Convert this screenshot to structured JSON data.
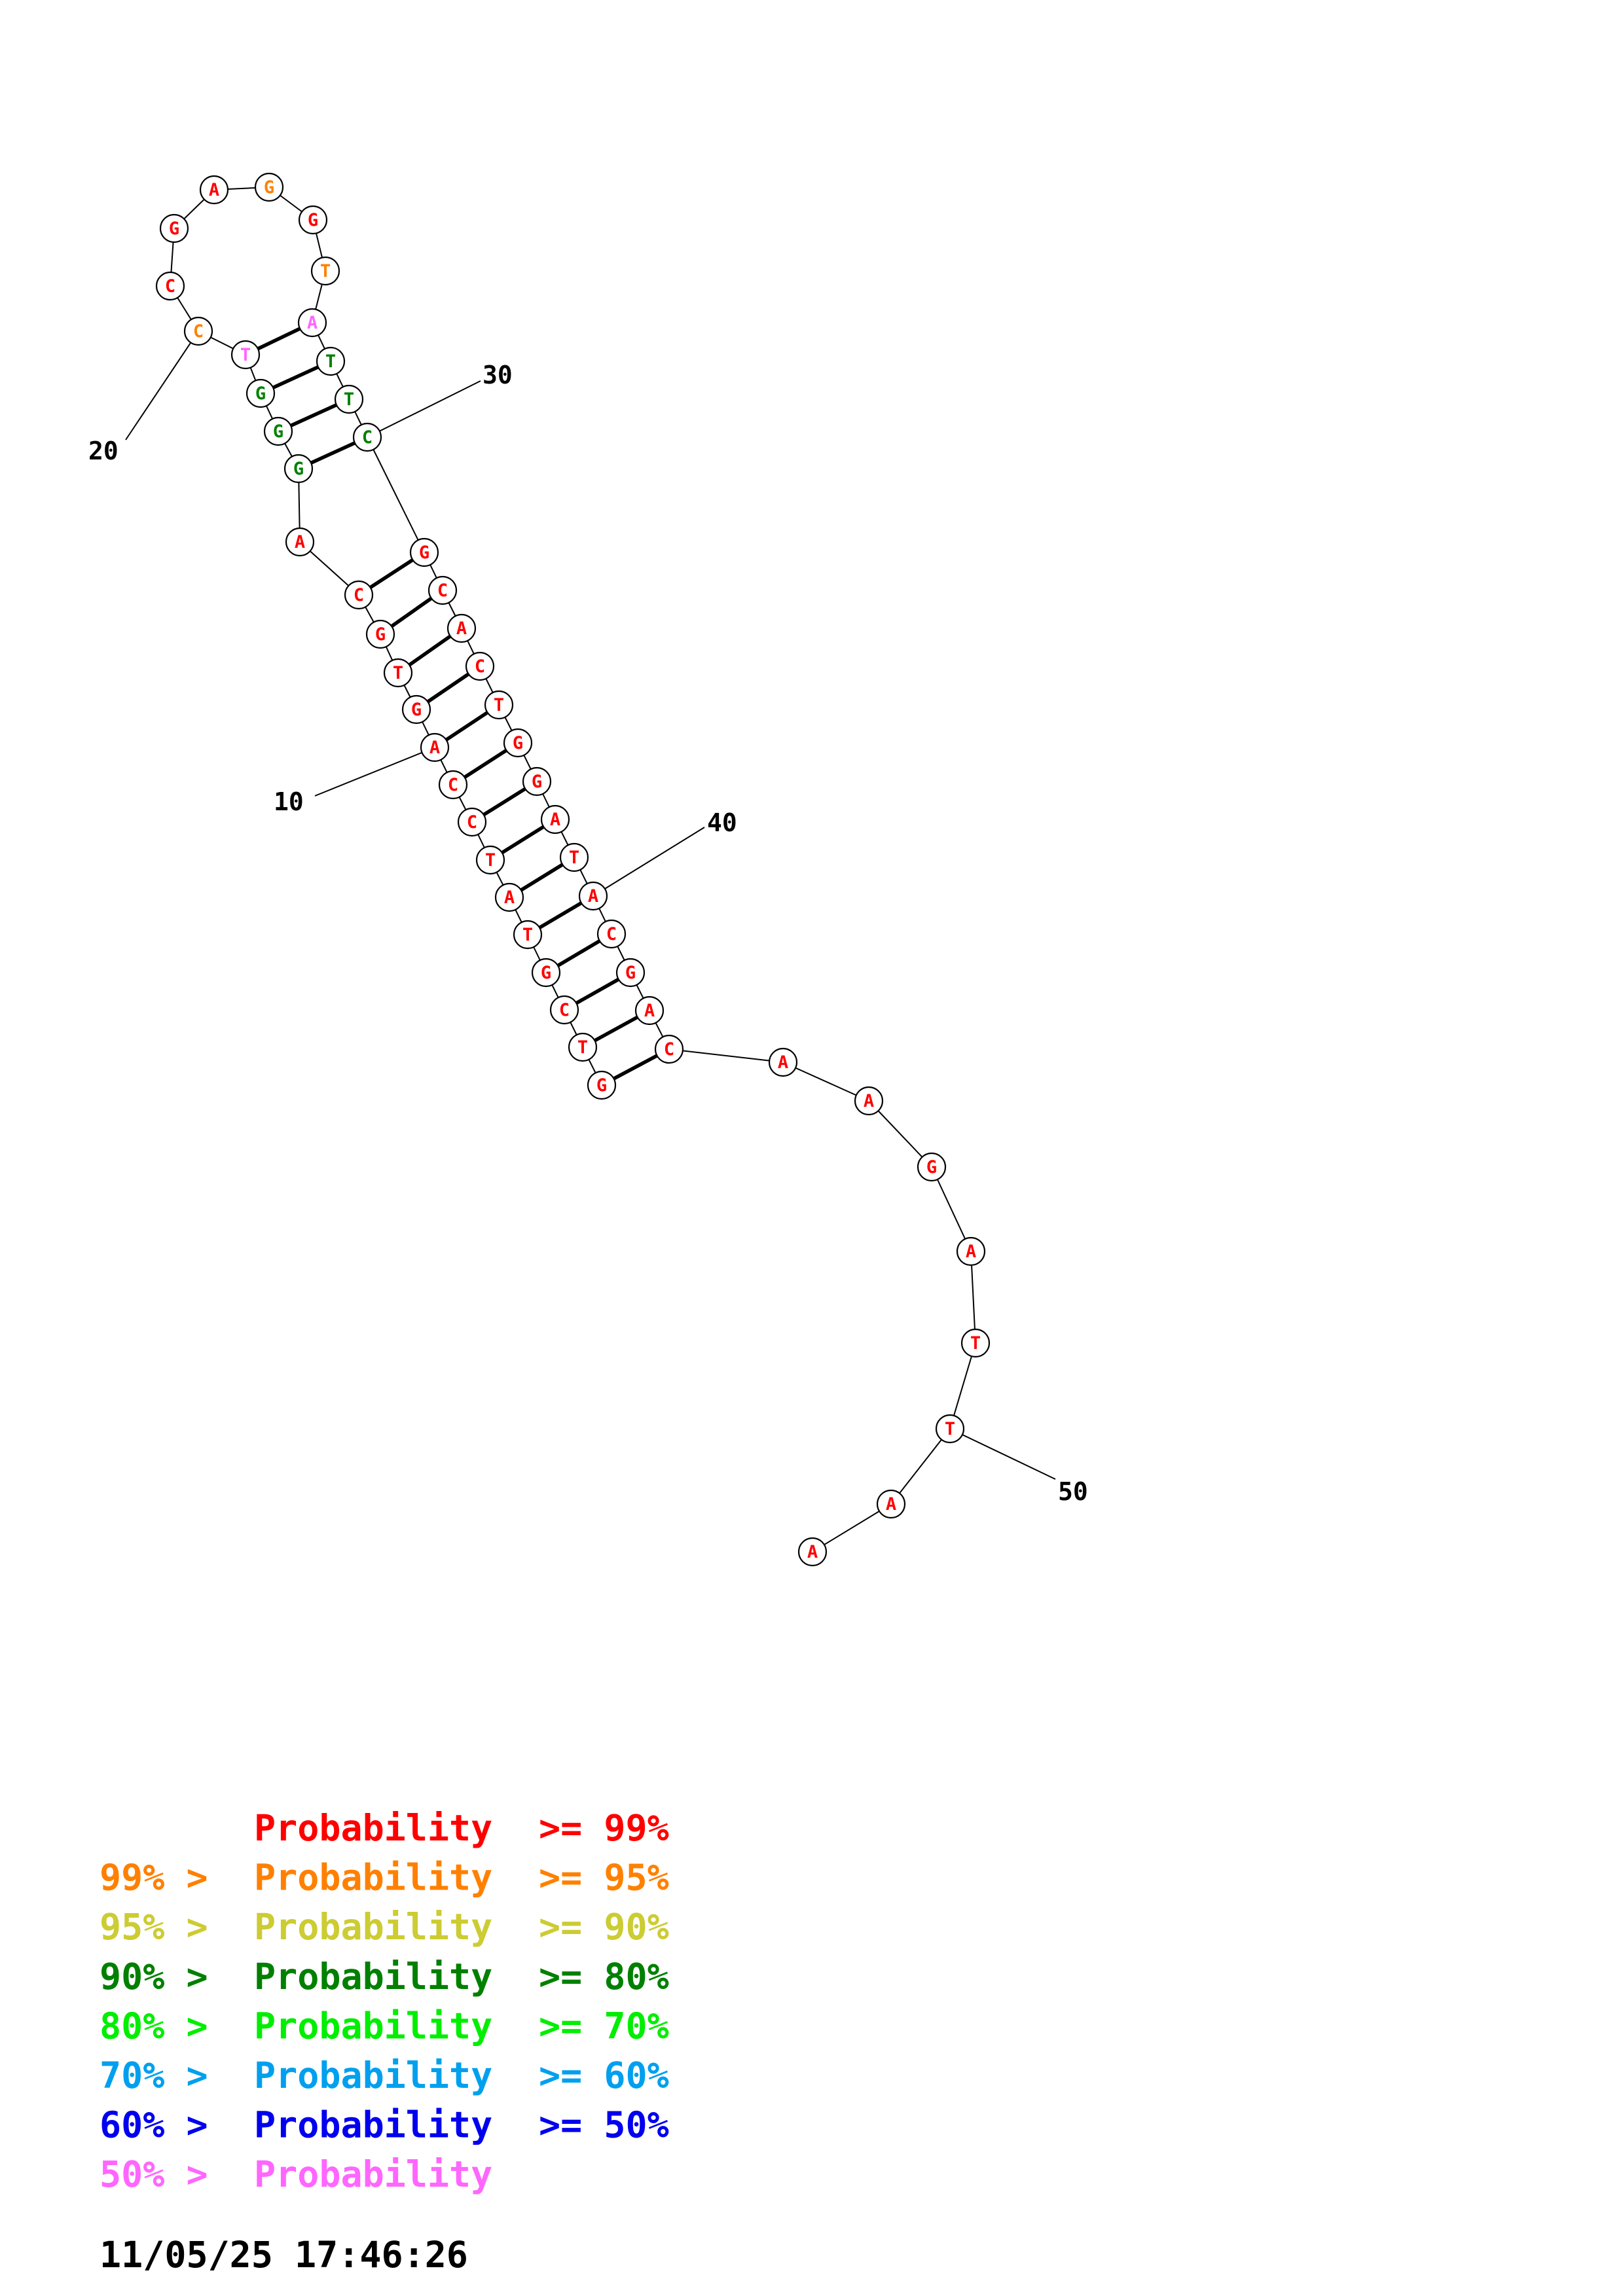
{
  "structure": {
    "bases": [
      {
        "n": 1,
        "letter": "G",
        "color": "#ff0000"
      },
      {
        "n": 2,
        "letter": "T",
        "color": "#ff0000"
      },
      {
        "n": 3,
        "letter": "C",
        "color": "#ff0000"
      },
      {
        "n": 4,
        "letter": "G",
        "color": "#ff0000"
      },
      {
        "n": 5,
        "letter": "T",
        "color": "#ff0000"
      },
      {
        "n": 6,
        "letter": "A",
        "color": "#ff0000"
      },
      {
        "n": 7,
        "letter": "T",
        "color": "#ff0000"
      },
      {
        "n": 8,
        "letter": "C",
        "color": "#ff0000"
      },
      {
        "n": 9,
        "letter": "C",
        "color": "#ff0000"
      },
      {
        "n": 10,
        "letter": "A",
        "color": "#ff0000"
      },
      {
        "n": 11,
        "letter": "G",
        "color": "#ff0000"
      },
      {
        "n": 12,
        "letter": "T",
        "color": "#ff0000"
      },
      {
        "n": 13,
        "letter": "G",
        "color": "#ff0000"
      },
      {
        "n": 14,
        "letter": "C",
        "color": "#ff0000"
      },
      {
        "n": 15,
        "letter": "A",
        "color": "#ff0000"
      },
      {
        "n": 16,
        "letter": "G",
        "color": "#008000"
      },
      {
        "n": 17,
        "letter": "G",
        "color": "#008000"
      },
      {
        "n": 18,
        "letter": "G",
        "color": "#008000"
      },
      {
        "n": 19,
        "letter": "T",
        "color": "#ff66ff"
      },
      {
        "n": 20,
        "letter": "C",
        "color": "#ff8000"
      },
      {
        "n": 21,
        "letter": "C",
        "color": "#ff0000"
      },
      {
        "n": 22,
        "letter": "G",
        "color": "#ff0000"
      },
      {
        "n": 23,
        "letter": "A",
        "color": "#ff0000"
      },
      {
        "n": 24,
        "letter": "G",
        "color": "#ff8000"
      },
      {
        "n": 25,
        "letter": "G",
        "color": "#ff0000"
      },
      {
        "n": 26,
        "letter": "T",
        "color": "#ff8000"
      },
      {
        "n": 27,
        "letter": "A",
        "color": "#ff66ff"
      },
      {
        "n": 28,
        "letter": "T",
        "color": "#008000"
      },
      {
        "n": 29,
        "letter": "T",
        "color": "#008000"
      },
      {
        "n": 30,
        "letter": "C",
        "color": "#008000"
      },
      {
        "n": 31,
        "letter": "G",
        "color": "#ff0000"
      },
      {
        "n": 32,
        "letter": "C",
        "color": "#ff0000"
      },
      {
        "n": 33,
        "letter": "A",
        "color": "#ff0000"
      },
      {
        "n": 34,
        "letter": "C",
        "color": "#ff0000"
      },
      {
        "n": 35,
        "letter": "T",
        "color": "#ff0000"
      },
      {
        "n": 36,
        "letter": "G",
        "color": "#ff0000"
      },
      {
        "n": 37,
        "letter": "G",
        "color": "#ff0000"
      },
      {
        "n": 38,
        "letter": "A",
        "color": "#ff0000"
      },
      {
        "n": 39,
        "letter": "T",
        "color": "#ff0000"
      },
      {
        "n": 40,
        "letter": "A",
        "color": "#ff0000"
      },
      {
        "n": 41,
        "letter": "C",
        "color": "#ff0000"
      },
      {
        "n": 42,
        "letter": "G",
        "color": "#ff0000"
      },
      {
        "n": 43,
        "letter": "A",
        "color": "#ff0000"
      },
      {
        "n": 44,
        "letter": "C",
        "color": "#ff0000"
      },
      {
        "n": 45,
        "letter": "A",
        "color": "#ff0000"
      },
      {
        "n": 46,
        "letter": "A",
        "color": "#ff0000"
      },
      {
        "n": 47,
        "letter": "G",
        "color": "#ff0000"
      },
      {
        "n": 48,
        "letter": "A",
        "color": "#ff0000"
      },
      {
        "n": 49,
        "letter": "T",
        "color": "#ff0000"
      },
      {
        "n": 50,
        "letter": "T",
        "color": "#ff0000"
      },
      {
        "n": 51,
        "letter": "A",
        "color": "#ff0000"
      },
      {
        "n": 52,
        "letter": "A",
        "color": "#ff0000"
      }
    ],
    "pairs": [
      [
        1,
        44
      ],
      [
        2,
        43
      ],
      [
        3,
        42
      ],
      [
        4,
        41
      ],
      [
        5,
        40
      ],
      [
        6,
        39
      ],
      [
        7,
        38
      ],
      [
        8,
        37
      ],
      [
        9,
        36
      ],
      [
        10,
        35
      ],
      [
        11,
        34
      ],
      [
        12,
        33
      ],
      [
        13,
        32
      ],
      [
        14,
        31
      ],
      [
        16,
        30
      ],
      [
        17,
        29
      ],
      [
        18,
        28
      ],
      [
        19,
        27
      ]
    ],
    "index_labels": [
      "10",
      "20",
      "30",
      "40",
      "50"
    ]
  },
  "legend": [
    {
      "prefix": "",
      "label": "Probability",
      "suffix": ">= 99%",
      "color": "#ff0000"
    },
    {
      "prefix": "99% >",
      "label": "Probability",
      "suffix": ">= 95%",
      "color": "#ff8000"
    },
    {
      "prefix": "95% >",
      "label": "Probability",
      "suffix": ">= 90%",
      "color": "#cccc33"
    },
    {
      "prefix": "90% >",
      "label": "Probability",
      "suffix": ">= 80%",
      "color": "#008000"
    },
    {
      "prefix": "80% >",
      "label": "Probability",
      "suffix": ">= 70%",
      "color": "#00ee00"
    },
    {
      "prefix": "70% >",
      "label": "Probability",
      "suffix": ">= 60%",
      "color": "#00a0ee"
    },
    {
      "prefix": "60% >",
      "label": "Probability",
      "suffix": ">= 50%",
      "color": "#0000ee"
    },
    {
      "prefix": "50% >",
      "label": "Probability",
      "suffix": "",
      "color": "#ff66ff"
    }
  ],
  "timestamp": "11/05/25 17:46:26"
}
